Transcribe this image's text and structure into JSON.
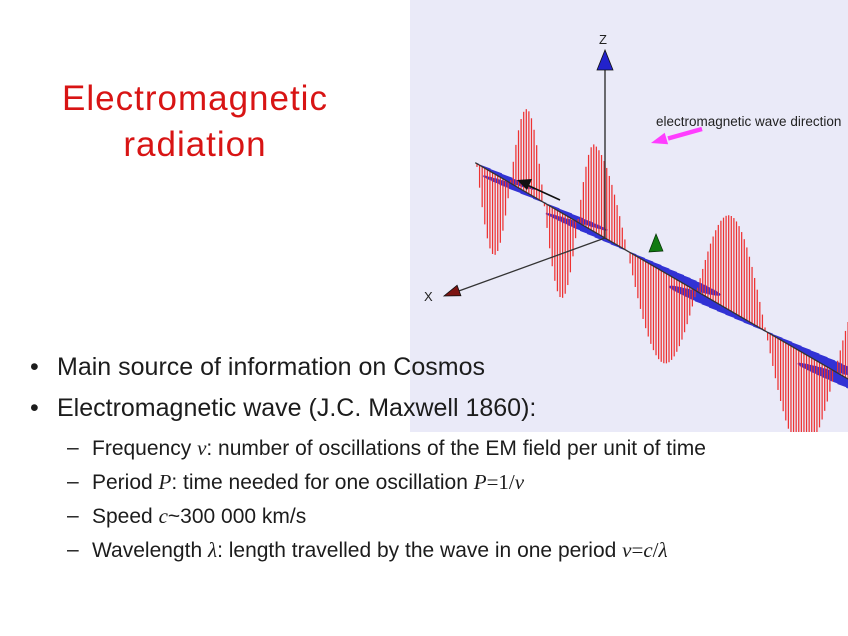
{
  "slide": {
    "title": {
      "line1": "Electromagnetic",
      "line2": "radiation",
      "color": "#d81414"
    },
    "bullets": [
      {
        "level": 1,
        "marker": "•",
        "segments": [
          {
            "t": "Main source of information on Cosmos"
          }
        ]
      },
      {
        "level": 1,
        "marker": "•",
        "segments": [
          {
            "t": "Electromagnetic wave (J.C. Maxwell 1860):"
          }
        ]
      },
      {
        "level": 2,
        "marker": "–",
        "segments": [
          {
            "t": "Frequency "
          },
          {
            "t": "ν",
            "f": "si"
          },
          {
            "t": ": number of oscillations of the EM field per unit of time"
          }
        ]
      },
      {
        "level": 2,
        "marker": "–",
        "segments": [
          {
            "t": "Period "
          },
          {
            "t": "P",
            "f": "si"
          },
          {
            "t": ": time needed for one oscillation "
          },
          {
            "t": "P",
            "f": "si"
          },
          {
            "t": "=1/",
            "f": "se"
          },
          {
            "t": "ν",
            "f": "si"
          }
        ]
      },
      {
        "level": 2,
        "marker": "–",
        "segments": [
          {
            "t": "Speed "
          },
          {
            "t": "c",
            "f": "si"
          },
          {
            "t": "~300 000 km/s"
          }
        ]
      },
      {
        "level": 2,
        "marker": "–",
        "segments": [
          {
            "t": "Wavelength "
          },
          {
            "t": "λ",
            "f": "si"
          },
          {
            "t": ": length travelled by the wave in one period "
          },
          {
            "t": "ν",
            "f": "si"
          },
          {
            "t": "=",
            "f": "se"
          },
          {
            "t": "c",
            "f": "si"
          },
          {
            "t": "/",
            "f": "se"
          },
          {
            "t": "λ",
            "f": "si"
          }
        ]
      }
    ]
  },
  "figure": {
    "background": "#eaeaf8",
    "axis_labels": {
      "z": "Z",
      "x": "X"
    },
    "wave_direction_label": "electromagnetic wave direction",
    "colors": {
      "e_field": "#ee3232",
      "b_field": "#3333d4",
      "axis": "#333333",
      "z_arrow": "#2222cc",
      "x_arrow": "#7c1412",
      "direction_arrow": "#ff3dff",
      "field_arrow": "#111111",
      "marker_green": "#127a12",
      "label": "#222222"
    }
  }
}
